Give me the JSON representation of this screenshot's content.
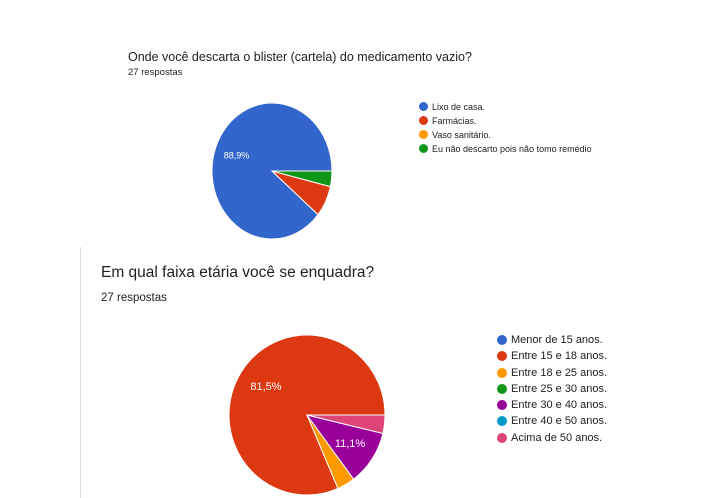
{
  "chart_data": [
    {
      "type": "pie",
      "title": "Onde você descarta o blister (cartela) do medicamento vazio?",
      "subtitle": "27 respostas",
      "categories": [
        "Lixo de casa.",
        "Farmácias.",
        "Vaso sanitário.",
        "Eu não descarto pois não tomo remédio"
      ],
      "values": [
        88.9,
        7.4,
        0,
        3.7
      ],
      "colors": [
        "#3366cc",
        "#dc3912",
        "#ff9900",
        "#109618"
      ],
      "data_labels": [
        "88,9%",
        "",
        "",
        ""
      ],
      "legend_position": "right"
    },
    {
      "type": "pie",
      "title": "Em qual faixa etária você se enquadra?",
      "subtitle": "27 respostas",
      "categories": [
        "Menor de 15 anos.",
        "Entre 15 e 18 anos.",
        "Entre 18 e 25 anos.",
        "Entre 25 e 30 anos.",
        "Entre 30 e 40 anos.",
        "Entre 40 e 50 anos.",
        "Acima de 50 anos."
      ],
      "values": [
        0,
        81.5,
        3.7,
        0,
        11.1,
        0,
        3.7
      ],
      "colors": [
        "#3366cc",
        "#dc3912",
        "#ff9900",
        "#109618",
        "#990099",
        "#0099c6",
        "#dd4477"
      ],
      "data_labels": [
        "",
        "81,5%",
        "",
        "",
        "11,1%",
        "",
        ""
      ],
      "legend_position": "right"
    }
  ]
}
